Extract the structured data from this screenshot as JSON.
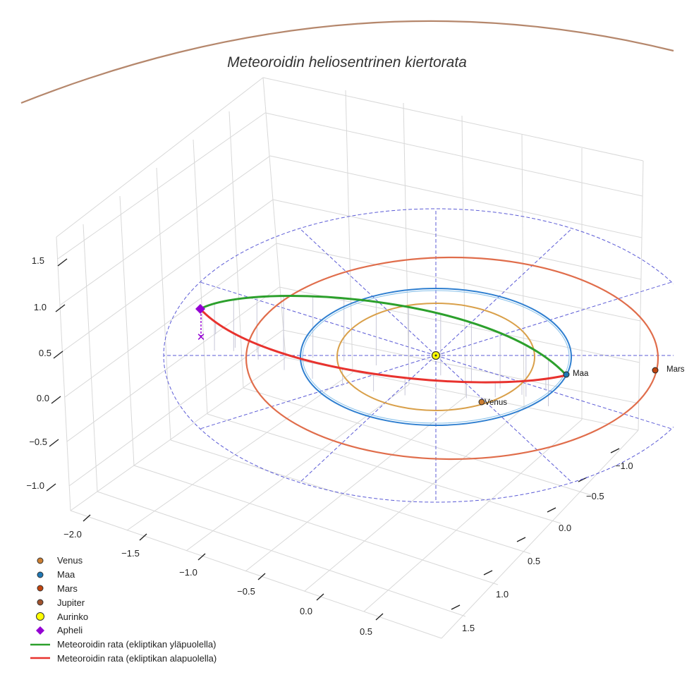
{
  "chart_data": {
    "type": "line",
    "title": "Meteoroidin heliosentrinen kiertorata",
    "projection": "3d",
    "x_ticks": [
      -2.0,
      -1.5,
      -1.0,
      -0.5,
      0.0,
      0.5
    ],
    "x_tick_labels": [
      "−2.0",
      "−1.5",
      "−1.0",
      "−0.5",
      "0.0",
      "0.5"
    ],
    "y_ticks": [
      -1.0,
      -0.5,
      0.0,
      0.5,
      1.0,
      1.5
    ],
    "y_tick_labels": [
      "−1.0",
      "−0.5",
      "0.0",
      "0.5",
      "1.0",
      "1.5"
    ],
    "z_ticks": [
      -1.0,
      -0.5,
      0.0,
      0.5,
      1.0,
      1.5
    ],
    "z_tick_labels": [
      "−1.0",
      "−0.5",
      "0.0",
      "0.5",
      "1.0",
      "1.5"
    ],
    "planets": [
      {
        "name": "Venus",
        "orbit_radius": 0.72,
        "angle_deg": -60,
        "color": "#cd7f32"
      },
      {
        "name": "Maa",
        "orbit_radius": 1.0,
        "angle_deg": -13,
        "color": "#1f77b4"
      },
      {
        "name": "Mars",
        "orbit_radius": 1.52,
        "angle_deg": -8,
        "color": "#c1440e"
      },
      {
        "name": "Jupiter",
        "orbit_radius": 5.2,
        "color": "#a0522d"
      }
    ],
    "sun": {
      "name": "Aurinko",
      "color": "#ffff00"
    },
    "aphelion": {
      "name": "Apheli",
      "color": "#9400d3"
    },
    "series": [
      {
        "name": "Meteoroidin rata (ekliptikan yläpuolella)",
        "color": "#2ca02c"
      },
      {
        "name": "Meteoroidin rata (ekliptikan alapuolella)",
        "color": "#e8322e"
      }
    ],
    "ecliptic_grid": {
      "max_radius": 2.0,
      "spokes": 12,
      "color": "#5b5bd6",
      "style": "dashed"
    },
    "legend_position": "bottom-left",
    "grid": true
  },
  "legend": [
    {
      "label": "Venus",
      "kind": "dot",
      "color": "#cd7f32"
    },
    {
      "label": "Maa",
      "kind": "dot",
      "color": "#1f77b4"
    },
    {
      "label": "Mars",
      "kind": "dot",
      "color": "#c1440e"
    },
    {
      "label": "Jupiter",
      "kind": "dot",
      "color": "#a0522d"
    },
    {
      "label": "Aurinko",
      "kind": "sun",
      "color": "#ffff00"
    },
    {
      "label": "Apheli",
      "kind": "diamond",
      "color": "#9400d3"
    },
    {
      "label": "Meteoroidin rata (ekliptikan yläpuolella)",
      "kind": "line",
      "color": "#2ca02c"
    },
    {
      "label": "Meteoroidin rata (ekliptikan alapuolella)",
      "kind": "line",
      "color": "#e8322e"
    }
  ]
}
